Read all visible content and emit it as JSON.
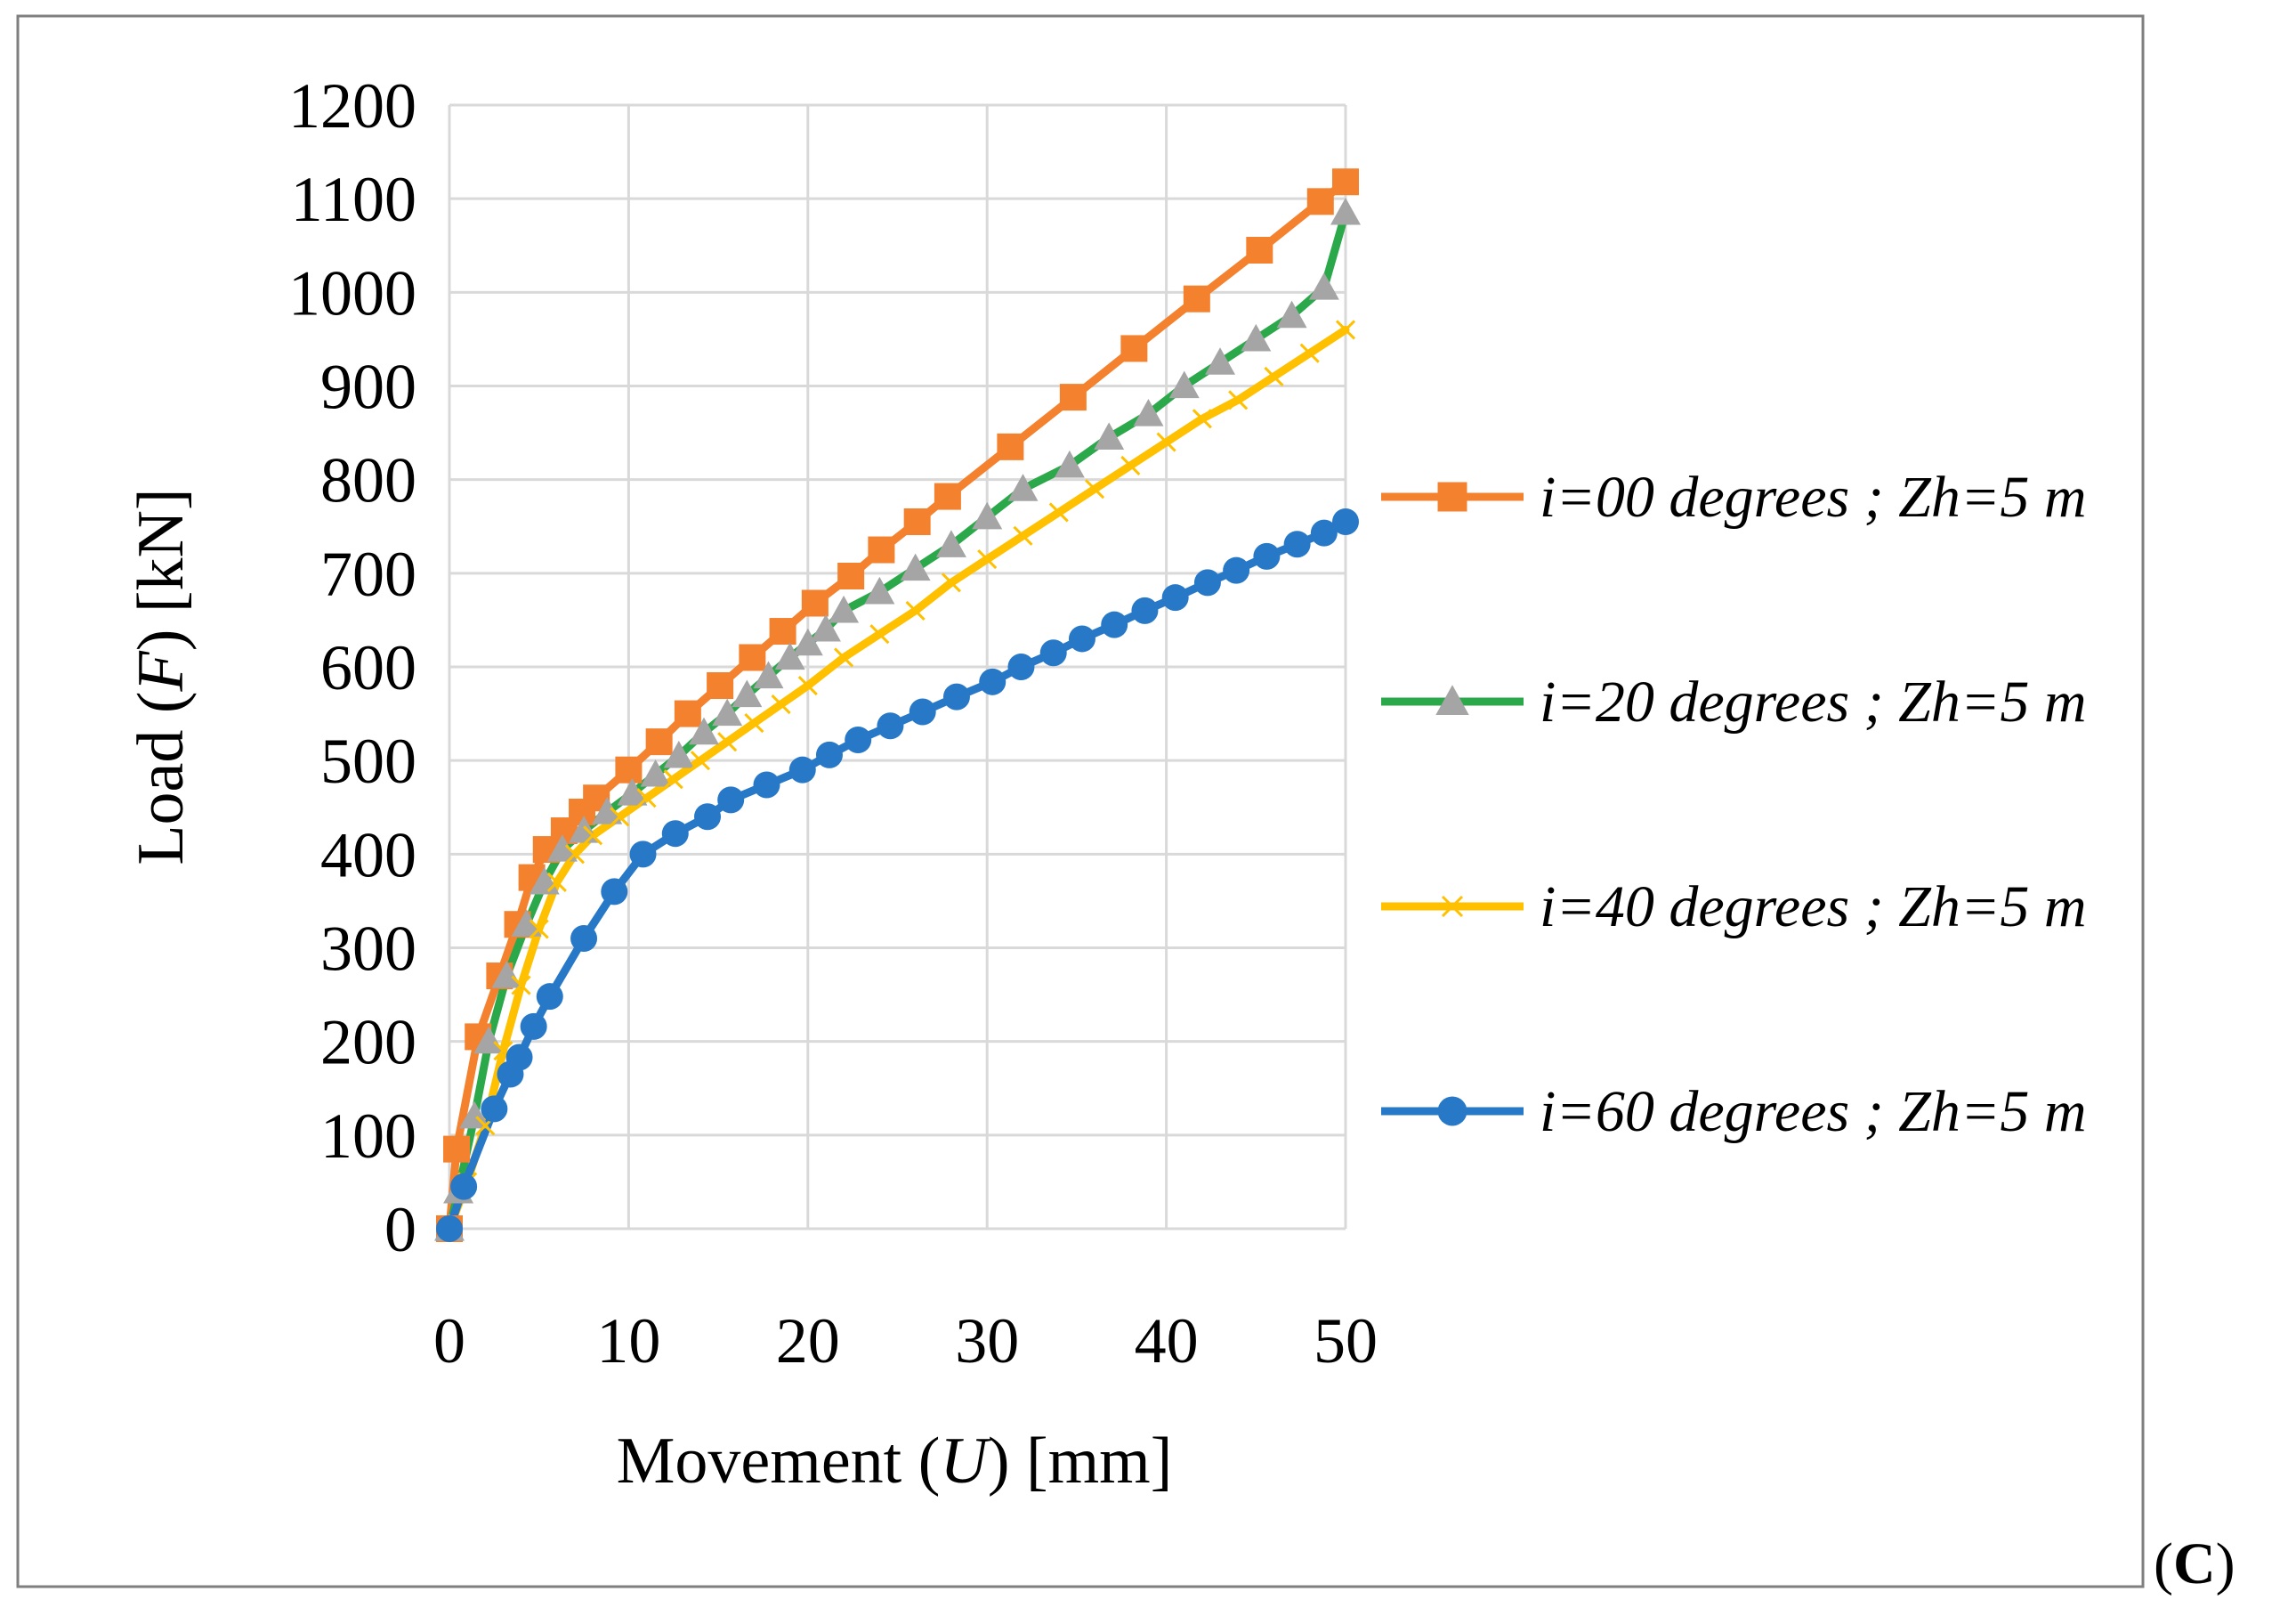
{
  "chart_data": {
    "type": "line",
    "title": "",
    "xlabel": "Movement (U) [mm]",
    "xlabel_parts": {
      "pre": "Movement (",
      "var": "U",
      "post": ") [mm]"
    },
    "ylabel": "Load (F) [kN]",
    "ylabel_parts": {
      "pre": "Load (",
      "var": "F",
      "post": ") [kN]"
    },
    "xlim": [
      0,
      50
    ],
    "ylim": [
      0,
      1200
    ],
    "xticks": [
      0,
      10,
      20,
      30,
      40,
      50
    ],
    "yticks": [
      0,
      100,
      200,
      300,
      400,
      500,
      600,
      700,
      800,
      900,
      1000,
      1100,
      1200
    ],
    "grid": true,
    "legend_position": "right",
    "panel_label": {
      "open": "(",
      "letter": "C",
      "close": ")"
    },
    "series": [
      {
        "name": "i=00 degrees ; Zh=5 m",
        "color": "#f4812d",
        "marker": "square",
        "x": [
          0,
          0.4,
          1.6,
          2.8,
          3.8,
          4.6,
          5.4,
          6.4,
          7.4,
          8.2,
          10,
          11.7,
          13.3,
          15.1,
          16.9,
          18.6,
          20.4,
          22.4,
          24.1,
          26.1,
          27.8,
          31.3,
          34.8,
          38.2,
          41.7,
          45.2,
          48.6,
          50
        ],
        "y": [
          0,
          85,
          205,
          270,
          325,
          375,
          405,
          425,
          445,
          460,
          490,
          520,
          550,
          580,
          610,
          638,
          668,
          697,
          725,
          755,
          782,
          835,
          888,
          940,
          993,
          1045,
          1097,
          1118
        ]
      },
      {
        "name": "i=20 degrees ; Zh=5 m",
        "color": "#2ba84a",
        "marker": "triangle",
        "x": [
          0,
          0.5,
          1.4,
          2.2,
          3.2,
          4.3,
          5.3,
          6.3,
          7.5,
          8.8,
          10.2,
          11.5,
          12.8,
          14.2,
          15.5,
          16.6,
          17.8,
          19,
          20,
          21,
          22,
          24,
          26,
          28,
          30,
          32,
          34.6,
          36.8,
          39,
          41,
          43,
          45,
          47,
          48.8,
          50
        ],
        "y": [
          0,
          40,
          120,
          200,
          270,
          325,
          370,
          405,
          425,
          445,
          465,
          485,
          505,
          530,
          550,
          570,
          590,
          610,
          625,
          640,
          660,
          680,
          705,
          730,
          760,
          790,
          815,
          845,
          870,
          900,
          925,
          950,
          975,
          1005,
          1085
        ]
      },
      {
        "name": "i=40 degrees ; Zh=5 m",
        "color": "#ffc000",
        "marker": "x",
        "x": [
          0,
          1,
          2,
          3,
          4,
          5,
          6,
          7,
          8,
          9.5,
          11,
          12.5,
          14,
          15.5,
          17,
          18.5,
          20,
          22,
          24,
          26,
          28,
          30,
          32,
          34,
          36,
          38,
          40,
          42,
          44,
          46,
          48,
          50
        ],
        "y": [
          0,
          50,
          110,
          190,
          260,
          320,
          370,
          400,
          420,
          440,
          460,
          480,
          500,
          520,
          540,
          560,
          580,
          610,
          635,
          660,
          690,
          715,
          740,
          765,
          790,
          815,
          840,
          865,
          885,
          910,
          935,
          960
        ]
      },
      {
        "name": "i=60 degrees ; Zh=5 m",
        "color": "#2878c8",
        "marker": "circle",
        "x": [
          0,
          0.8,
          2.5,
          3.4,
          3.9,
          4.7,
          5.6,
          7.5,
          9.2,
          10.8,
          12.6,
          14.4,
          15.7,
          17.7,
          19.7,
          21.2,
          22.8,
          24.6,
          26.4,
          28.3,
          30.3,
          31.9,
          33.7,
          35.3,
          37.1,
          38.8,
          40.5,
          42.3,
          43.9,
          45.6,
          47.3,
          48.8,
          50
        ],
        "y": [
          0,
          45,
          128,
          165,
          183,
          216,
          248,
          310,
          360,
          400,
          422,
          440,
          458,
          474,
          490,
          506,
          522,
          537,
          552,
          568,
          584,
          600,
          615,
          630,
          645,
          660,
          674,
          690,
          703,
          718,
          731,
          743,
          755
        ]
      }
    ]
  }
}
